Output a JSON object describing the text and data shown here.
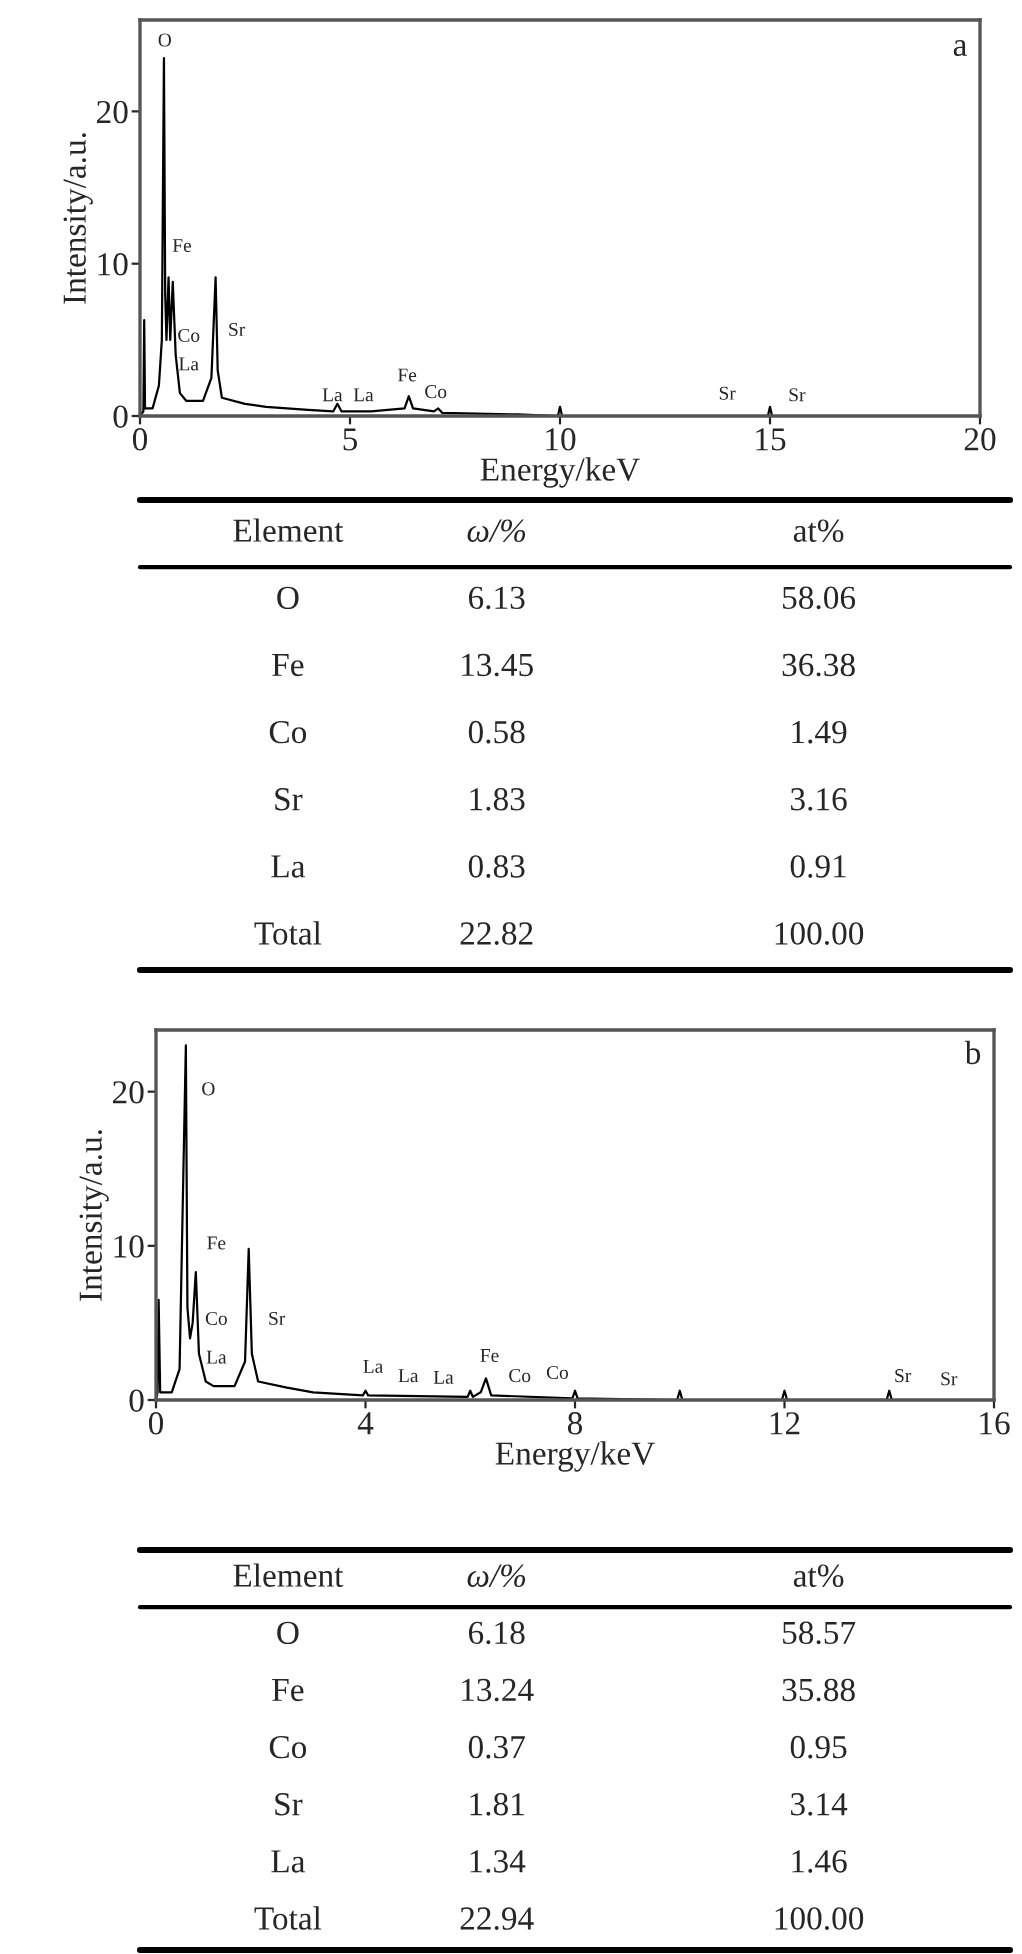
{
  "chart_data": [
    {
      "type": "line",
      "xlabel": "Energy/keV",
      "ylabel": "Intensity/a.u.",
      "xlim": [
        0,
        20
      ],
      "ylim": [
        0,
        26
      ],
      "xticks": [
        0,
        5,
        10,
        15,
        20
      ],
      "yticks": [
        0,
        10,
        20
      ],
      "grid": false,
      "marker": "none",
      "line_style": "solid",
      "x": [
        0,
        0.08,
        0.1,
        0.12,
        0.3,
        0.45,
        0.52,
        0.57,
        0.6,
        0.63,
        0.68,
        0.72,
        0.78,
        0.85,
        0.95,
        1.1,
        1.5,
        1.7,
        1.8,
        1.85,
        1.95,
        2.5,
        3,
        4,
        4.6,
        4.7,
        4.8,
        5.5,
        6.3,
        6.4,
        6.5,
        7.0,
        7.1,
        7.2,
        9,
        9.95,
        10,
        10.05,
        14.95,
        15,
        15.05,
        20
      ],
      "series": [
        {
          "color": "#000000",
          "values": [
            0,
            0.3,
            6.3,
            0.5,
            0.5,
            2,
            5,
            23.5,
            8,
            5,
            9.1,
            5,
            8.8,
            4,
            1.5,
            1,
            1,
            2.5,
            9.1,
            3,
            1.2,
            0.8,
            0.6,
            0.4,
            0.3,
            0.8,
            0.3,
            0.3,
            0.5,
            1.3,
            0.5,
            0.3,
            0.5,
            0.2,
            0.1,
            0,
            0.6,
            0,
            0,
            0.6,
            0,
            0
          ]
        }
      ],
      "annotations": [
        "a",
        "O",
        "Fe",
        "Co",
        "La",
        "Sr",
        "La",
        "La",
        "Fe",
        "Co",
        "Sr",
        "Sr"
      ]
    },
    {
      "type": "other",
      "xlabel": "Element",
      "data_labels": true,
      "categories": [
        "O",
        "Fe",
        "Co",
        "Sr",
        "La",
        "Total"
      ],
      "series": [
        {
          "name": "ω/%",
          "values": [
            6.13,
            13.45,
            0.58,
            1.83,
            0.83,
            22.82
          ]
        },
        {
          "name": "at%",
          "values": [
            58.06,
            36.38,
            1.49,
            3.16,
            0.91,
            100.0
          ],
          "value_labels": [
            "58.06",
            "36.38",
            "1.49",
            "3.16",
            "0.91",
            "100.00"
          ]
        }
      ]
    },
    {
      "type": "line",
      "xlabel": "Energy/keV",
      "ylabel": "Intensity/a.u.",
      "xlim": [
        0,
        16
      ],
      "ylim": [
        0,
        24
      ],
      "xticks": [
        0,
        4,
        8,
        12,
        16
      ],
      "yticks": [
        0,
        10,
        20
      ],
      "grid": false,
      "marker": "none",
      "line_style": "solid",
      "x": [
        0,
        0.03,
        0.05,
        0.08,
        0.3,
        0.45,
        0.52,
        0.57,
        0.6,
        0.65,
        0.7,
        0.76,
        0.82,
        0.95,
        1.1,
        1.5,
        1.7,
        1.77,
        1.83,
        1.95,
        2.5,
        3,
        3.95,
        4,
        4.05,
        5.95,
        6,
        6.05,
        6.2,
        6.3,
        6.4,
        7.95,
        8,
        8.05,
        9.95,
        10,
        10.05,
        11.95,
        12,
        12.05,
        13.95,
        14,
        14.05,
        16
      ],
      "series": [
        {
          "color": "#000000",
          "values": [
            0,
            0.5,
            6.5,
            0.5,
            0.5,
            2,
            14.3,
            23,
            6,
            4,
            5,
            8.3,
            3,
            1.2,
            0.9,
            0.9,
            2.5,
            9.8,
            3,
            1.2,
            0.8,
            0.5,
            0.3,
            0.6,
            0.3,
            0.2,
            0.6,
            0.2,
            0.5,
            1.4,
            0.3,
            0.1,
            0.6,
            0.1,
            0,
            0.6,
            0,
            0,
            0.6,
            0,
            0,
            0.6,
            0,
            0
          ]
        }
      ],
      "annotations": [
        "b",
        "O",
        "Fe",
        "Co",
        "La",
        "Sr",
        "La",
        "La",
        "La",
        "Fe",
        "Co",
        "Co",
        "Sr",
        "Sr"
      ]
    },
    {
      "type": "other",
      "xlabel": "Element",
      "data_labels": true,
      "categories": [
        "O",
        "Fe",
        "Co",
        "Sr",
        "La",
        "Total"
      ],
      "series": [
        {
          "name": "ω/%",
          "values": [
            6.18,
            13.24,
            0.37,
            1.81,
            1.34,
            22.94
          ]
        },
        {
          "name": "at%",
          "values": [
            58.57,
            35.88,
            0.95,
            3.14,
            1.46,
            100.0
          ],
          "value_labels": [
            "58.57",
            "35.88",
            "0.95",
            "3.14",
            "1.46",
            "100.00"
          ]
        }
      ]
    }
  ]
}
